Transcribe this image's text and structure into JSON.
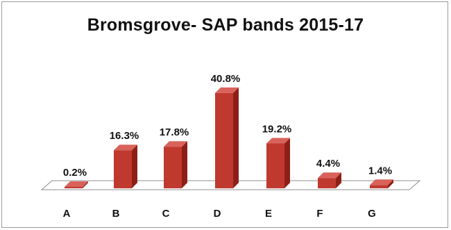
{
  "chart_data": {
    "type": "bar",
    "title": "Bromsgrove- SAP bands 2015-17",
    "xlabel": "",
    "ylabel": "",
    "categories": [
      "A",
      "B",
      "C",
      "D",
      "E",
      "F",
      "G"
    ],
    "values": [
      0.2,
      16.3,
      17.8,
      40.8,
      19.2,
      4.4,
      1.4
    ],
    "value_labels": [
      "0.2%",
      "16.3%",
      "17.8%",
      "40.8%",
      "19.2%",
      "4.4%",
      "1.4%"
    ],
    "style": "3d-column",
    "grid": false,
    "legend": "none",
    "colors": {
      "bar_front": "#c0392f",
      "bar_side": "#8e1f17",
      "bar_top": "#d9625a",
      "floor": "#ffffff",
      "floor_edge": "#8c8c8c"
    }
  }
}
